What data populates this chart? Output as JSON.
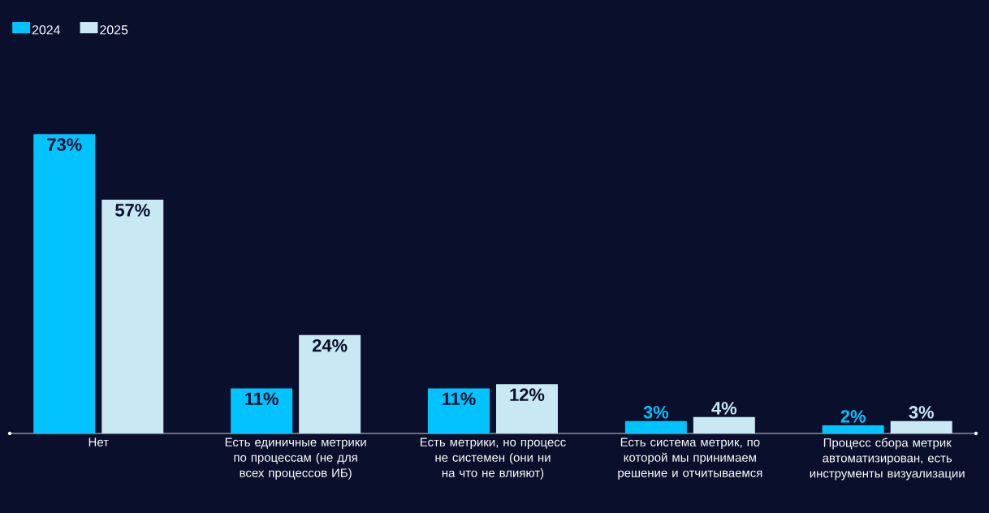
{
  "chart_data": {
    "type": "bar",
    "categories": [
      "Нет",
      "Есть единичные метрики по процессам (не для всех процессов ИБ)",
      "Есть метрики, но процесс не системен (они ни на что не влияют)",
      "Есть система метрик, по которой мы принимаем решение и отчитываемся",
      "Процесс сбора метрик автоматизирован, есть инструменты визуализации"
    ],
    "series": [
      {
        "name": "2024",
        "color": "#00c3ff",
        "values": [
          73,
          11,
          11,
          3,
          2
        ],
        "value_labels": [
          "73%",
          "11%",
          "11%",
          "3%",
          "2%"
        ]
      },
      {
        "name": "2025",
        "color": "#c8e8f4",
        "values": [
          57,
          24,
          12,
          4,
          3
        ],
        "value_labels": [
          "57%",
          "24%",
          "12%",
          "4%",
          "3%"
        ]
      }
    ],
    "legend": "top left"
  }
}
